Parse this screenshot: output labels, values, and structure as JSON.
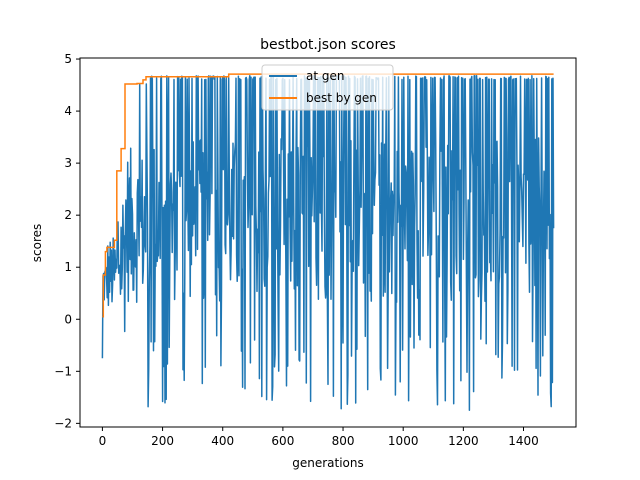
{
  "chart_data": {
    "type": "line",
    "title": "bestbot.json scores",
    "xlabel": "generations",
    "ylabel": "scores",
    "xlim": [
      -74.5,
      1574.5
    ],
    "ylim": [
      -2.07,
      5.02
    ],
    "xticks": [
      0,
      200,
      400,
      600,
      800,
      1000,
      1200,
      1400
    ],
    "yticks": [
      -2,
      -1,
      0,
      1,
      2,
      3,
      4,
      5
    ],
    "legend_position": "top-center",
    "series": [
      {
        "name": "at gen",
        "color": "#1f77b4",
        "x_start": 0,
        "x_end": 1500,
        "approx_min": -1.75,
        "approx_max": 4.68,
        "notes": "noisy per-generation score; frequent spikes up to ~4.68 after gen ~150, dips to ~-1.75"
      },
      {
        "name": "best by gen",
        "color": "#ff7f0e",
        "steps": [
          [
            0,
            0.05
          ],
          [
            3,
            0.85
          ],
          [
            10,
            1.3
          ],
          [
            15,
            1.38
          ],
          [
            40,
            1.52
          ],
          [
            48,
            2.85
          ],
          [
            62,
            3.28
          ],
          [
            75,
            4.52
          ],
          [
            115,
            4.53
          ],
          [
            135,
            4.6
          ],
          [
            145,
            4.66
          ],
          [
            420,
            4.71
          ],
          [
            1500,
            4.71
          ]
        ]
      }
    ]
  }
}
